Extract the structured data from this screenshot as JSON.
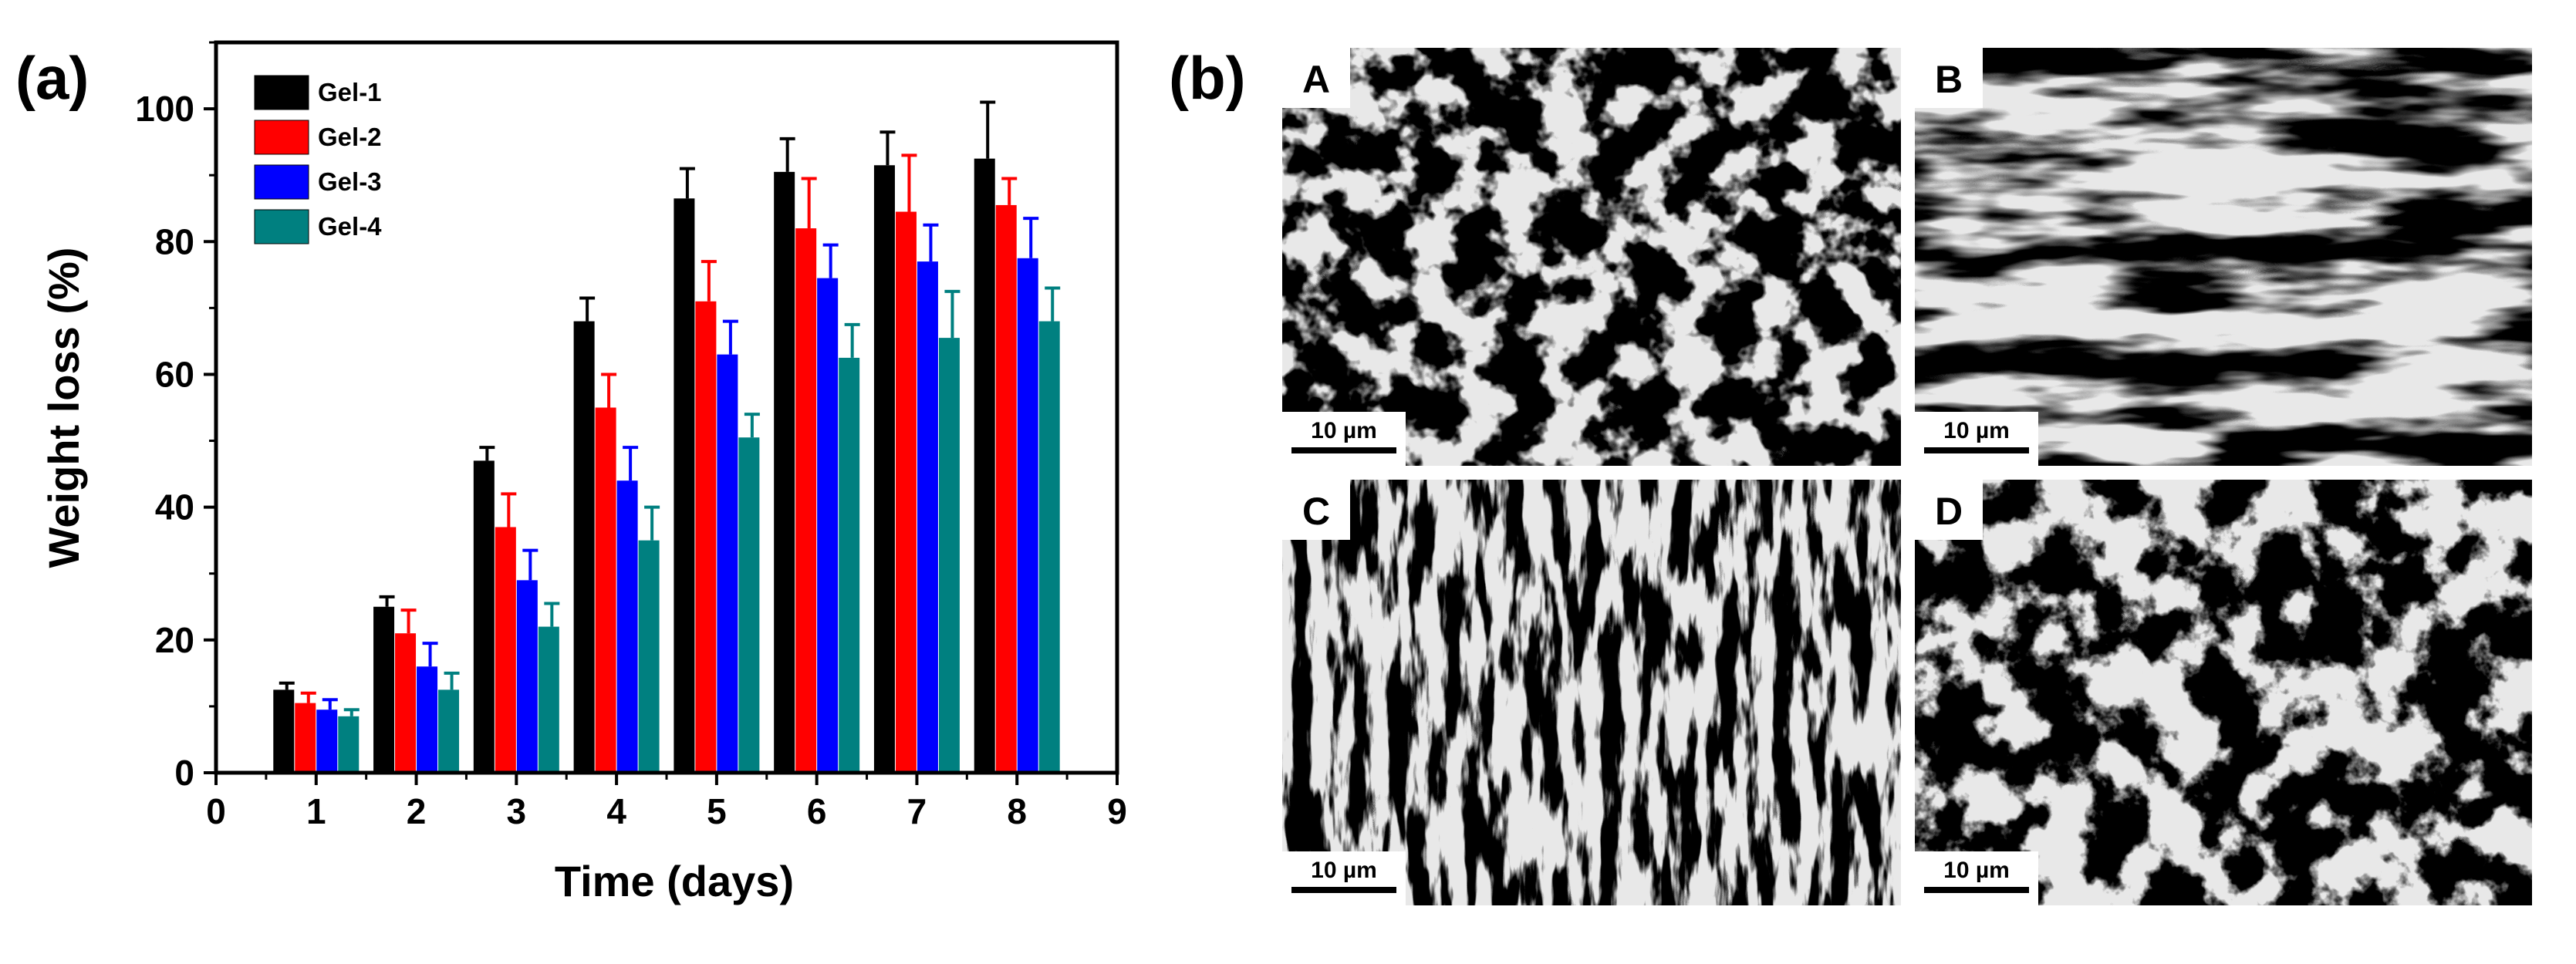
{
  "panel_a_label": "(a)",
  "panel_b_label": "(b)",
  "chart_data": {
    "type": "bar",
    "x": [
      1,
      2,
      3,
      4,
      5,
      6,
      7,
      8
    ],
    "xticks": [
      "0",
      "1",
      "2",
      "3",
      "4",
      "5",
      "6",
      "7",
      "8",
      "9"
    ],
    "yticks": [
      "0",
      "20",
      "40",
      "60",
      "80",
      "100"
    ],
    "xlim": [
      0,
      9
    ],
    "ylim": [
      0,
      110
    ],
    "xlabel": "Time (days)",
    "ylabel": "Weight loss (%)",
    "legend_position": "top-left",
    "grid": false,
    "error_bars": true,
    "series": [
      {
        "name": "Gel-1",
        "color": "#000000",
        "values": [
          12.5,
          25,
          47,
          68,
          86.5,
          90.5,
          91.5,
          92.5
        ],
        "errors": [
          1,
          1.5,
          2,
          3.5,
          4.5,
          5,
          5,
          8.5
        ]
      },
      {
        "name": "Gel-2",
        "color": "#ff0000",
        "values": [
          10.5,
          21,
          37,
          55,
          71,
          82,
          84.5,
          85.5
        ],
        "errors": [
          1.5,
          3.5,
          5,
          5,
          6,
          7.5,
          8.5,
          4
        ]
      },
      {
        "name": "Gel-3",
        "color": "#0000ff",
        "values": [
          9.5,
          16,
          29,
          44,
          63,
          74.5,
          77,
          77.5
        ],
        "errors": [
          1.5,
          3.5,
          4.5,
          5,
          5,
          5,
          5.5,
          6
        ]
      },
      {
        "name": "Gel-4",
        "color": "#008080",
        "values": [
          8.5,
          12.5,
          22,
          35,
          50.5,
          62.5,
          65.5,
          68
        ],
        "errors": [
          1,
          2.5,
          3.5,
          5,
          3.5,
          5,
          7,
          5
        ]
      }
    ]
  },
  "sem_images": [
    {
      "label": "A",
      "scale_bar": "10 µm",
      "texture": "open-network"
    },
    {
      "label": "B",
      "scale_bar": "10 µm",
      "texture": "sheet-fibers"
    },
    {
      "label": "C",
      "scale_bar": "10 µm",
      "texture": "diagonal-dense"
    },
    {
      "label": "D",
      "scale_bar": "10 µm",
      "texture": "porous-network"
    }
  ]
}
